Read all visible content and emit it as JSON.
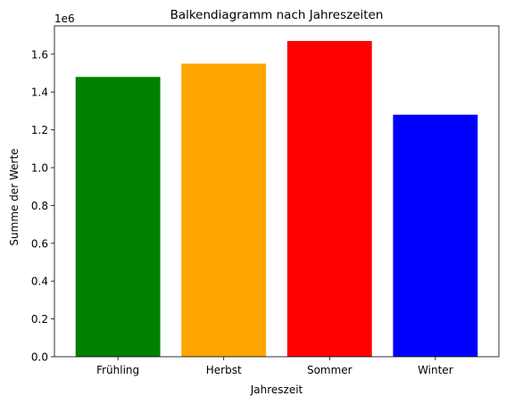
{
  "chart_data": {
    "type": "bar",
    "title": "Balkendiagramm nach Jahreszeiten",
    "xlabel": "Jahreszeit",
    "ylabel": "Summe der Werte",
    "y_offset_label": "1e6",
    "categories": [
      "Frühling",
      "Herbst",
      "Sommer",
      "Winter"
    ],
    "values": [
      1480000,
      1550000,
      1670000,
      1280000
    ],
    "colors": [
      "#008000",
      "#ffa500",
      "#ff0000",
      "#0000ff"
    ],
    "ylim": [
      0,
      1750000
    ],
    "yticks": [
      0,
      200000,
      400000,
      600000,
      800000,
      1000000,
      1200000,
      1400000,
      1600000
    ],
    "ytick_labels": [
      "0.0",
      "0.2",
      "0.4",
      "0.6",
      "0.8",
      "1.0",
      "1.2",
      "1.4",
      "1.6"
    ],
    "grid": false,
    "legend": "none"
  }
}
